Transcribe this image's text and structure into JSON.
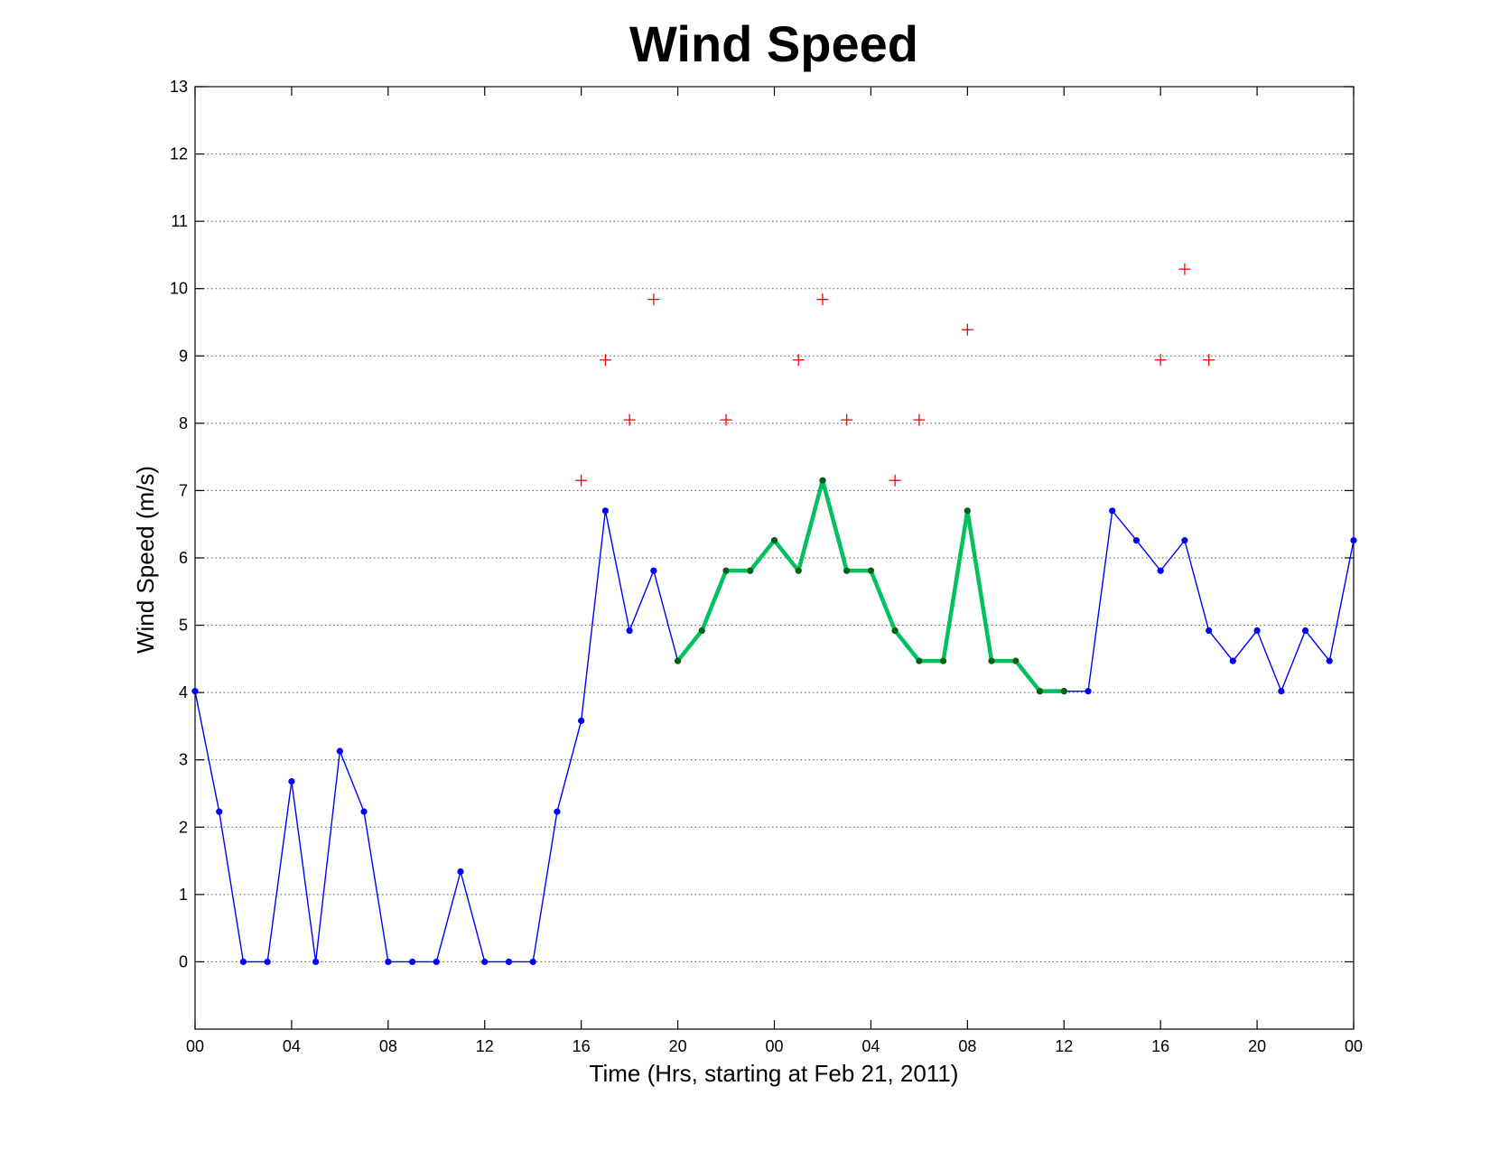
{
  "chart_data": {
    "type": "line",
    "title": "Wind Speed",
    "xlabel": "Time (Hrs, starting at Feb 21, 2011)",
    "ylabel": "Wind Speed (m/s)",
    "xlim": [
      0,
      48
    ],
    "ylim": [
      -1,
      13
    ],
    "x_ticks": [
      {
        "value": 0,
        "label": "00"
      },
      {
        "value": 4,
        "label": "04"
      },
      {
        "value": 8,
        "label": "08"
      },
      {
        "value": 12,
        "label": "12"
      },
      {
        "value": 16,
        "label": "16"
      },
      {
        "value": 20,
        "label": "20"
      },
      {
        "value": 24,
        "label": "00"
      },
      {
        "value": 28,
        "label": "04"
      },
      {
        "value": 32,
        "label": "08"
      },
      {
        "value": 36,
        "label": "12"
      },
      {
        "value": 40,
        "label": "16"
      },
      {
        "value": 44,
        "label": "20"
      },
      {
        "value": 48,
        "label": "00"
      }
    ],
    "y_ticks": [
      {
        "value": 0,
        "label": "0"
      },
      {
        "value": 1,
        "label": "1"
      },
      {
        "value": 2,
        "label": "2"
      },
      {
        "value": 3,
        "label": "3"
      },
      {
        "value": 4,
        "label": "4"
      },
      {
        "value": 5,
        "label": "5"
      },
      {
        "value": 6,
        "label": "6"
      },
      {
        "value": 7,
        "label": "7"
      },
      {
        "value": 8,
        "label": "8"
      },
      {
        "value": 9,
        "label": "9"
      },
      {
        "value": 10,
        "label": "10"
      },
      {
        "value": 11,
        "label": "11"
      },
      {
        "value": 12,
        "label": "12"
      },
      {
        "value": 13,
        "label": "13"
      }
    ],
    "grid": "horizontal dotted",
    "colors": {
      "blue_series": "#0000ff",
      "green_series": "#00c060",
      "green_markers": "#006400",
      "red_markers": "#ff0000"
    },
    "series": [
      {
        "style": "blue line with dot markers",
        "x": [
          0,
          1,
          2,
          3,
          4,
          5,
          6,
          7,
          8,
          9,
          10,
          11,
          12,
          13,
          14,
          15,
          16,
          17,
          18,
          19,
          20,
          21,
          22,
          23,
          24,
          25,
          26,
          27,
          28,
          29,
          30,
          31,
          32,
          33,
          34,
          35,
          36,
          37,
          38,
          39,
          40,
          41,
          42,
          43,
          44,
          45,
          46,
          47,
          48
        ],
        "y": [
          4.02,
          2.23,
          0,
          0,
          2.68,
          0,
          3.13,
          2.23,
          0,
          0,
          0,
          1.34,
          0,
          0,
          0,
          2.23,
          3.58,
          6.7,
          4.92,
          5.81,
          4.47,
          4.92,
          5.81,
          5.81,
          6.26,
          5.81,
          7.15,
          5.81,
          5.81,
          4.92,
          4.47,
          4.47,
          6.7,
          4.47,
          4.47,
          4.02,
          4.02,
          4.02,
          6.7,
          6.26,
          5.81,
          6.26,
          4.92,
          4.47,
          4.92,
          4.02,
          4.92,
          4.47,
          6.26
        ]
      },
      {
        "style": "thick green line with dark green dot markers",
        "x": [
          20,
          21,
          22,
          23,
          24,
          25,
          26,
          27,
          28,
          29,
          30,
          31,
          32,
          33,
          34,
          35,
          36
        ],
        "y": [
          4.47,
          4.92,
          5.81,
          5.81,
          6.26,
          5.81,
          7.15,
          5.81,
          5.81,
          4.92,
          4.47,
          4.47,
          6.7,
          4.47,
          4.47,
          4.02,
          4.02
        ]
      },
      {
        "style": "red plus markers",
        "x": [
          16,
          17,
          18,
          19,
          22,
          25,
          26,
          27,
          29,
          30,
          32,
          40,
          41,
          42
        ],
        "y": [
          7.15,
          8.94,
          8.05,
          9.84,
          8.05,
          8.94,
          9.84,
          8.05,
          7.15,
          8.05,
          9.39,
          8.94,
          10.29,
          8.94
        ]
      }
    ]
  }
}
